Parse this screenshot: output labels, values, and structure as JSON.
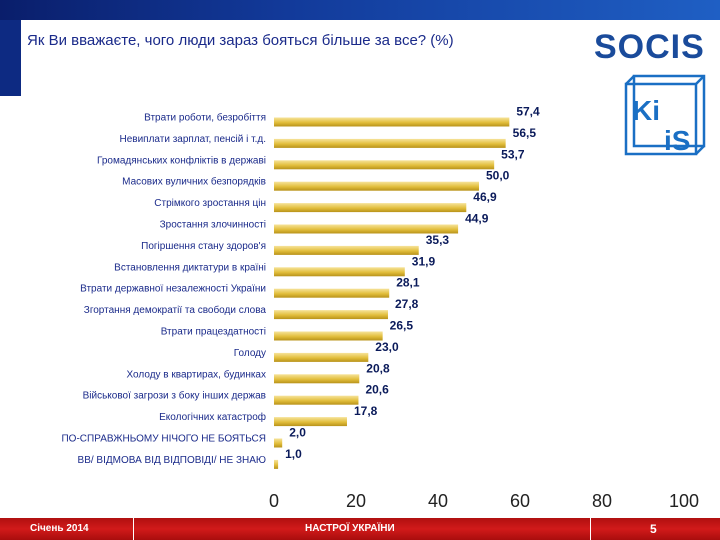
{
  "slide": {
    "title": "Як Ви вважаєте, чого люди зараз бояться більше за все? (%)",
    "logo_text": "SOCIS",
    "logo2_left": "Ki",
    "logo2_right": "iS"
  },
  "footer": {
    "date": "Січень 2014",
    "center": "НАСТРОЇ УКРАЇНИ",
    "page": "5"
  },
  "colors": {
    "bar_top": "#f6e39a",
    "bar_mid": "#e2be3c",
    "bar_bottom": "#b8921a",
    "brand_blue": "#1a4b9b",
    "footer_red": "#c81414"
  },
  "chart_data": {
    "type": "bar",
    "orientation": "horizontal",
    "title": "Як Ви вважаєте, чого люди зараз бояться більше за все? (%)",
    "xlim": [
      0,
      100
    ],
    "xticks": [
      "0",
      "20",
      "40",
      "60",
      "80",
      "100"
    ],
    "grid": false,
    "categories": [
      "Втрати роботи, безробіття",
      "Невиплати зарплат, пенсій і т.д.",
      "Громадянських конфліктів в державі",
      "Масових вуличних безпорядків",
      "Стрімкого зростання цін",
      "Зростання злочинності",
      "Погіршення стану здоров'я",
      "Встановлення диктатури в країні",
      "Втрати державної незалежності України",
      "Згортання демократії та свободи слова",
      "Втрати працездатності",
      "Голоду",
      "Холоду в квартирах, будинках",
      "Військової загрози з боку інших держав",
      "Екологічних катастроф",
      "ПО-СПРАВЖНЬОМУ НІЧОГО НЕ БОЯТЬСЯ",
      "ВВ/ ВІДМОВА ВІД ВІДПОВІДІ/ НЕ ЗНАЮ"
    ],
    "values": [
      57.4,
      56.5,
      53.7,
      50.0,
      46.9,
      44.9,
      35.3,
      31.9,
      28.1,
      27.8,
      26.5,
      23.0,
      20.8,
      20.6,
      17.8,
      2.0,
      1.0
    ],
    "value_labels": [
      "57,4",
      "56,5",
      "53,7",
      "50,0",
      "46,9",
      "44,9",
      "35,3",
      "31,9",
      "28,1",
      "27,8",
      "26,5",
      "23,0",
      "20,8",
      "20,6",
      "17,8",
      "2,0",
      "1,0"
    ]
  }
}
